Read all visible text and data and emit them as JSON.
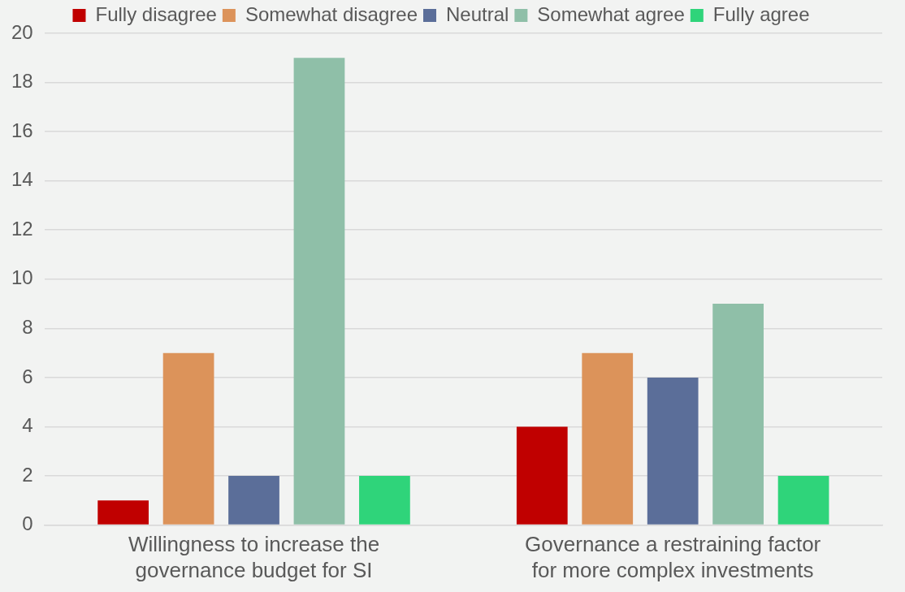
{
  "chart_data": {
    "type": "bar",
    "categories": [
      "Willingness to increase the governance budget for SI",
      "Governance a restraining factor for more complex investments"
    ],
    "series": [
      {
        "name": "Fully disagree",
        "color": "#c00000",
        "values": [
          1,
          4
        ]
      },
      {
        "name": "Somewhat disagree",
        "color": "#dc935a",
        "values": [
          7,
          7
        ]
      },
      {
        "name": "Neutral",
        "color": "#5b6e99",
        "values": [
          2,
          6
        ]
      },
      {
        "name": "Somewhat agree",
        "color": "#8fbfa8",
        "values": [
          19,
          9
        ]
      },
      {
        "name": "Fully agree",
        "color": "#2fd47a",
        "values": [
          2,
          2
        ]
      }
    ],
    "ylim": [
      0,
      20
    ],
    "yticks": [
      0,
      2,
      4,
      6,
      8,
      10,
      12,
      14,
      16,
      18,
      20
    ],
    "grid": "y",
    "legend": "top"
  }
}
